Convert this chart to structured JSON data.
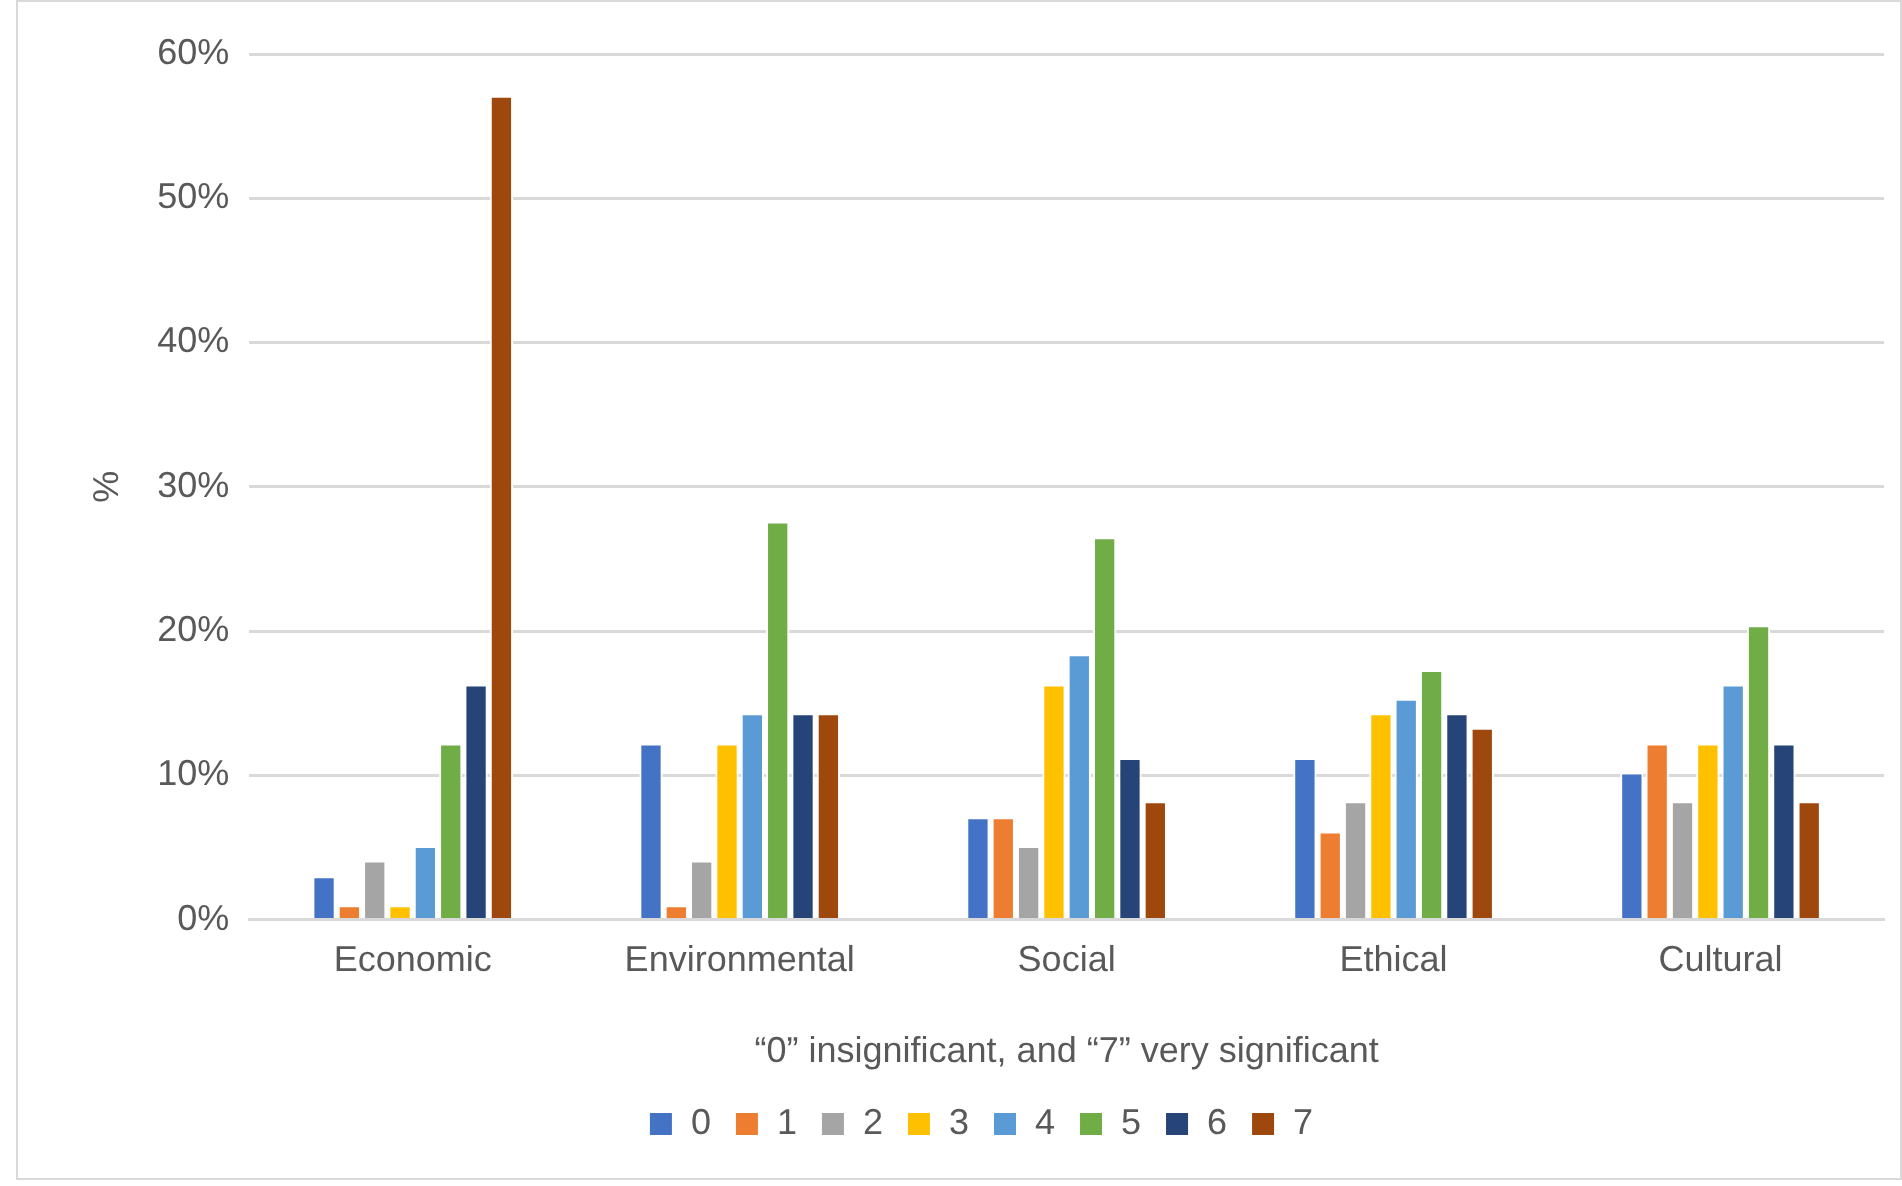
{
  "chart_data": {
    "type": "bar",
    "xlabel": "“0” insignificant, and “7” very significant",
    "ylabel": "%",
    "categories": [
      "Economic",
      "Environmental",
      "Social",
      "Ethical",
      "Cultural"
    ],
    "series": [
      {
        "name": "0",
        "color": "#4472c4",
        "values": [
          3,
          12.2,
          7.1,
          11.2,
          10.2
        ]
      },
      {
        "name": "1",
        "color": "#ed7d31",
        "values": [
          1,
          1,
          7.1,
          6.1,
          12.2
        ]
      },
      {
        "name": "2",
        "color": "#a5a5a5",
        "values": [
          4.1,
          4.1,
          5.1,
          8.2,
          8.2
        ]
      },
      {
        "name": "3",
        "color": "#ffc000",
        "values": [
          1,
          12.2,
          16.3,
          14.3,
          12.2
        ]
      },
      {
        "name": "4",
        "color": "#5b9bd5",
        "values": [
          5.1,
          14.3,
          18.4,
          15.3,
          16.3
        ]
      },
      {
        "name": "5",
        "color": "#70ad47",
        "values": [
          12.2,
          27.6,
          26.5,
          17.3,
          20.4
        ]
      },
      {
        "name": "6",
        "color": "#264478",
        "values": [
          16.3,
          14.3,
          11.2,
          14.3,
          12.2
        ]
      },
      {
        "name": "7",
        "color": "#9e480e",
        "values": [
          57.1,
          14.3,
          8.2,
          13.3,
          8.2
        ]
      }
    ],
    "ylim": [
      0,
      60
    ],
    "yticks": [
      {
        "value": 0,
        "label": "0%"
      },
      {
        "value": 10,
        "label": "10%"
      },
      {
        "value": 20,
        "label": "20%"
      },
      {
        "value": 30,
        "label": "30%"
      },
      {
        "value": 40,
        "label": "40%"
      },
      {
        "value": 50,
        "label": "50%"
      },
      {
        "value": 60,
        "label": "60%"
      }
    ],
    "grid": "y",
    "legend": "bottom"
  }
}
